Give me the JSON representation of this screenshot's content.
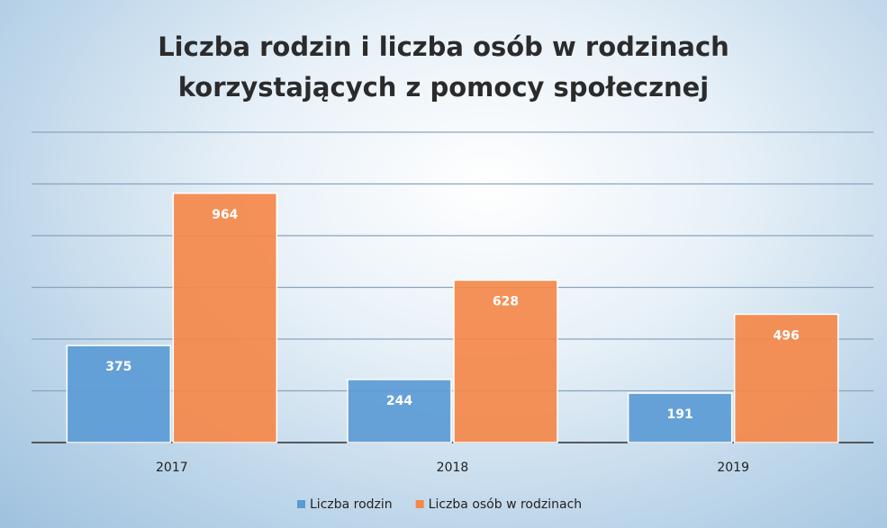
{
  "chart_data": {
    "type": "bar",
    "title": "Liczba rodzin i liczba osób w rodzinach korzystających z pomocy społecznej",
    "categories": [
      "2017",
      "2018",
      "2019"
    ],
    "series": [
      {
        "name": "Liczba rodzin",
        "color": "#5b9bd5",
        "values": [
          375,
          244,
          191
        ]
      },
      {
        "name": "Liczba osób w rodzinach",
        "color": "#f4884a",
        "values": [
          964,
          628,
          496
        ]
      }
    ],
    "ylim": [
      0,
      1200
    ],
    "yticks": [
      0,
      200,
      400,
      600,
      800,
      1000,
      1200
    ],
    "grid": true,
    "legend": "bottom"
  }
}
